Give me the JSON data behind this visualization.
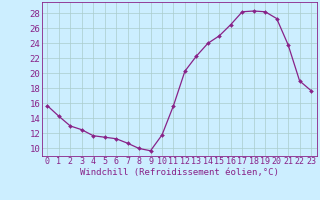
{
  "x": [
    0,
    1,
    2,
    3,
    4,
    5,
    6,
    7,
    8,
    9,
    10,
    11,
    12,
    13,
    14,
    15,
    16,
    17,
    18,
    19,
    20,
    21,
    22,
    23
  ],
  "y": [
    15.7,
    14.3,
    13.0,
    12.5,
    11.7,
    11.5,
    11.3,
    10.7,
    10.0,
    9.7,
    11.8,
    15.7,
    20.3,
    22.3,
    24.0,
    25.0,
    26.5,
    28.2,
    28.3,
    28.2,
    27.3,
    23.8,
    19.0,
    17.7
  ],
  "line_color": "#882288",
  "marker": "D",
  "marker_size": 2.0,
  "bg_color": "#cceeff",
  "grid_color": "#aacccc",
  "xlabel": "Windchill (Refroidissement éolien,°C)",
  "xlabel_fontsize": 6.5,
  "ylabel_ticks": [
    10,
    12,
    14,
    16,
    18,
    20,
    22,
    24,
    26,
    28
  ],
  "xlim": [
    -0.5,
    23.5
  ],
  "ylim": [
    9.0,
    29.5
  ],
  "tick_fontsize": 6.0,
  "ytick_fontsize": 6.5
}
